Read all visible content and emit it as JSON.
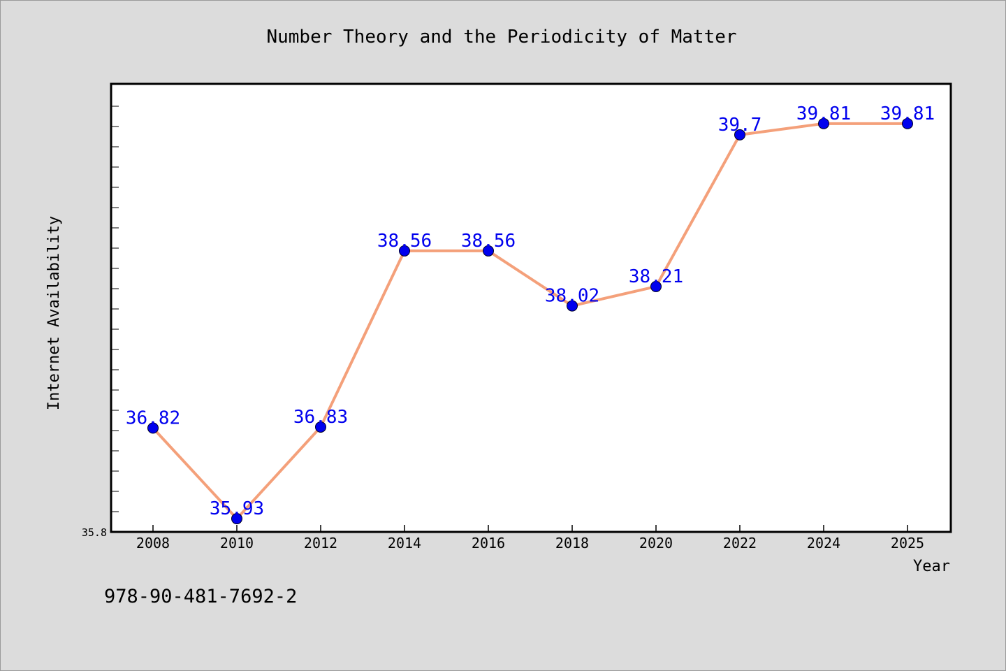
{
  "chart_data": {
    "type": "line",
    "title": "Number Theory and the Periodicity of Matter",
    "xlabel": "Year",
    "ylabel": "Internet Availability",
    "categories": [
      "2008",
      "2010",
      "2012",
      "2014",
      "2016",
      "2018",
      "2020",
      "2022",
      "2024",
      "2025"
    ],
    "values": [
      36.82,
      35.93,
      36.83,
      38.56,
      38.56,
      38.02,
      38.21,
      39.7,
      39.81,
      39.81
    ],
    "data_labels": [
      "36.82",
      "35.93",
      "36.83",
      "38.56",
      "38.56",
      "38.02",
      "38.21",
      "39.7",
      "39.81",
      "39.81"
    ],
    "ymin_label": "35.8",
    "ylim": [
      35.8,
      40.2
    ],
    "grid": false,
    "legend": "none",
    "colors": {
      "line": "#f4a07a",
      "marker": "#0000ee",
      "data_label": "#0000ee",
      "plot_background": "#ffffff",
      "page_background": "#dcdcdc"
    }
  },
  "footer": {
    "isbn": "978-90-481-7692-2"
  }
}
